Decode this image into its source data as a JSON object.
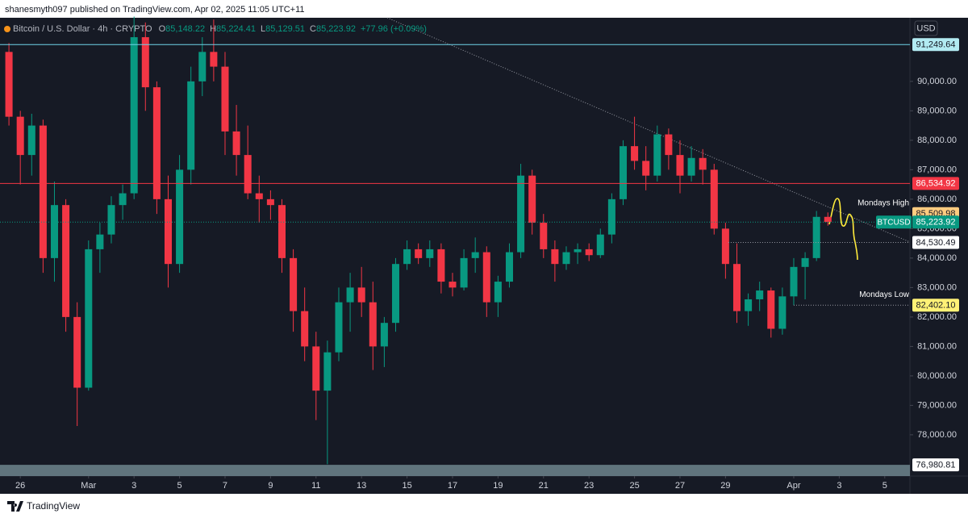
{
  "header": {
    "text": "shanesmyth097 published on TradingView.com, Apr 02, 2025 11:05 UTC+11"
  },
  "footer": {
    "brand": "TradingView"
  },
  "chart_data": {
    "type": "candlestick",
    "title": "Bitcoin / U.S. Dollar · 4h · CRYPTO",
    "legend": [
      {
        "prefix": "O",
        "value": 85148.22,
        "label": "85,148.22"
      },
      {
        "prefix": "H",
        "value": 85224.41,
        "label": "85,224.41"
      },
      {
        "prefix": "L",
        "value": 85129.51,
        "label": "85,129.51"
      },
      {
        "prefix": "C",
        "value": 85223.92,
        "label": "85,223.92"
      }
    ],
    "change": "+77.96 (+0.09%)",
    "currency": "USD",
    "up_color": "#089981",
    "down_color": "#f23645",
    "grid": false,
    "xlim": [
      "2025-02-25T02:34",
      "2025-04-06T02:34"
    ],
    "ylim": [
      76600,
      92160
    ],
    "yticks": [
      {
        "value": 78000,
        "label": "78,000.00"
      },
      {
        "value": 79000,
        "label": "79,000.00"
      },
      {
        "value": 80000,
        "label": "80,000.00"
      },
      {
        "value": 81000,
        "label": "81,000.00"
      },
      {
        "value": 82000,
        "label": "82,000.00"
      },
      {
        "value": 83000,
        "label": "83,000.00"
      },
      {
        "value": 84000,
        "label": "84,000.00"
      },
      {
        "value": 85000,
        "label": "85,000.00"
      },
      {
        "value": 86000,
        "label": "86,000.00"
      },
      {
        "value": 87000,
        "label": "87,000.00"
      },
      {
        "value": 88000,
        "label": "88,000.00"
      },
      {
        "value": 89000,
        "label": "89,000.00"
      },
      {
        "value": 90000,
        "label": "90,000.00"
      }
    ],
    "xticks": [
      {
        "value": "2025-02-26T00:00",
        "label": "26"
      },
      {
        "value": "2025-03-01T00:00",
        "label": "Mar"
      },
      {
        "value": "2025-03-03T00:00",
        "label": "3"
      },
      {
        "value": "2025-03-05T00:00",
        "label": "5"
      },
      {
        "value": "2025-03-07T00:00",
        "label": "7"
      },
      {
        "value": "2025-03-09T00:00",
        "label": "9"
      },
      {
        "value": "2025-03-11T00:00",
        "label": "11"
      },
      {
        "value": "2025-03-13T00:00",
        "label": "13"
      },
      {
        "value": "2025-03-15T00:00",
        "label": "15"
      },
      {
        "value": "2025-03-17T00:00",
        "label": "17"
      },
      {
        "value": "2025-03-19T00:00",
        "label": "19"
      },
      {
        "value": "2025-03-21T00:00",
        "label": "21"
      },
      {
        "value": "2025-03-23T00:00",
        "label": "23"
      },
      {
        "value": "2025-03-25T00:00",
        "label": "25"
      },
      {
        "value": "2025-03-27T00:00",
        "label": "27"
      },
      {
        "value": "2025-03-29T00:00",
        "label": "29"
      },
      {
        "value": "2025-04-01T00:00",
        "label": "Apr"
      },
      {
        "value": "2025-04-03T00:00",
        "label": "3"
      },
      {
        "value": "2025-04-05T00:00",
        "label": "5"
      }
    ],
    "price_lines": [
      {
        "value": 91249.64,
        "label": "91,249.64",
        "color": "#6fd3ea",
        "box": "#b2ebf2",
        "text_color": "#131722",
        "line": "solid"
      },
      {
        "value": 86534.92,
        "label": "86,534.92",
        "color": "#f23645",
        "box": "#f23645",
        "text_color": "#ffffff",
        "line": "solid"
      },
      {
        "value": 85509.98,
        "label": "85,509.98",
        "color": "#ffcc80",
        "box": "#ffcc80",
        "text_color": "#131722",
        "line": "none",
        "note": "Mondays High"
      },
      {
        "value": 85223.92,
        "label": "85,223.92",
        "color": "#089981",
        "box": "#089981",
        "text_color": "#ffffff",
        "line": "dotted",
        "symbol": "BTCUSD"
      },
      {
        "value": 84530.49,
        "label": "84,530.49",
        "color": "#9598a1",
        "box": "#ffffff",
        "text_color": "#131722",
        "line": "dotted",
        "from": "2025-03-29T03:00"
      },
      {
        "value": 82402.1,
        "label": "82,402.10",
        "color": "#9598a1",
        "box": "#fff176",
        "text_color": "#131722",
        "line": "dotted",
        "from": "2025-04-01T00:00",
        "note": "Mondays Low"
      },
      {
        "value": 76980.81,
        "label": "76,980.81",
        "color": "#7a939b",
        "box": "#ffffff",
        "text_color": "#131722",
        "line": "zone"
      }
    ],
    "x": [
      "2025-02-25T12:00",
      "2025-02-26T00:00",
      "2025-02-26T12:00",
      "2025-02-27T00:00",
      "2025-02-27T12:00",
      "2025-02-28T00:00",
      "2025-02-28T12:00",
      "2025-03-01T00:00",
      "2025-03-01T12:00",
      "2025-03-02T00:00",
      "2025-03-02T12:00",
      "2025-03-03T00:00",
      "2025-03-03T12:00",
      "2025-03-04T00:00",
      "2025-03-04T12:00",
      "2025-03-05T00:00",
      "2025-03-05T12:00",
      "2025-03-06T00:00",
      "2025-03-06T12:00",
      "2025-03-07T00:00",
      "2025-03-07T12:00",
      "2025-03-08T00:00",
      "2025-03-08T12:00",
      "2025-03-09T00:00",
      "2025-03-09T12:00",
      "2025-03-10T00:00",
      "2025-03-10T12:00",
      "2025-03-11T00:00",
      "2025-03-11T12:00",
      "2025-03-12T00:00",
      "2025-03-12T12:00",
      "2025-03-13T00:00",
      "2025-03-13T12:00",
      "2025-03-14T00:00",
      "2025-03-14T12:00",
      "2025-03-15T00:00",
      "2025-03-15T12:00",
      "2025-03-16T00:00",
      "2025-03-16T12:00",
      "2025-03-17T00:00",
      "2025-03-17T12:00",
      "2025-03-18T00:00",
      "2025-03-18T12:00",
      "2025-03-19T00:00",
      "2025-03-19T12:00",
      "2025-03-20T00:00",
      "2025-03-20T12:00",
      "2025-03-21T00:00",
      "2025-03-21T12:00",
      "2025-03-22T00:00",
      "2025-03-22T12:00",
      "2025-03-23T00:00",
      "2025-03-23T12:00",
      "2025-03-24T00:00",
      "2025-03-24T12:00",
      "2025-03-25T00:00",
      "2025-03-25T12:00",
      "2025-03-26T00:00",
      "2025-03-26T12:00",
      "2025-03-27T00:00",
      "2025-03-27T12:00",
      "2025-03-28T00:00",
      "2025-03-28T12:00",
      "2025-03-29T00:00",
      "2025-03-29T12:00",
      "2025-03-30T00:00",
      "2025-03-30T12:00",
      "2025-03-31T00:00",
      "2025-03-31T12:00",
      "2025-04-01T00:00",
      "2025-04-01T12:00",
      "2025-04-02T00:00",
      "2025-04-02T12:00"
    ],
    "ohlc": [
      [
        91000,
        91300,
        88500,
        88800
      ],
      [
        88800,
        89000,
        86500,
        87500
      ],
      [
        87500,
        88900,
        86800,
        88500
      ],
      [
        88500,
        88700,
        83500,
        84000
      ],
      [
        84000,
        86600,
        83200,
        85800
      ],
      [
        85800,
        86000,
        81500,
        82000
      ],
      [
        82000,
        82500,
        78300,
        79600
      ],
      [
        79600,
        84600,
        79500,
        84300
      ],
      [
        84300,
        85200,
        83500,
        84800
      ],
      [
        84800,
        86100,
        84500,
        85800
      ],
      [
        85800,
        86500,
        85300,
        86200
      ],
      [
        86200,
        92200,
        86000,
        91500
      ],
      [
        91500,
        92000,
        89000,
        89800
      ],
      [
        89800,
        90000,
        85500,
        86000
      ],
      [
        86000,
        86800,
        83000,
        83800
      ],
      [
        83800,
        87500,
        83500,
        87000
      ],
      [
        87000,
        90500,
        86500,
        90000
      ],
      [
        90000,
        91500,
        89500,
        91000
      ],
      [
        91000,
        92100,
        90000,
        90500
      ],
      [
        90500,
        91000,
        87500,
        88300
      ],
      [
        88300,
        89200,
        86800,
        87500
      ],
      [
        87500,
        88500,
        86000,
        86200
      ],
      [
        86200,
        86800,
        85200,
        86000
      ],
      [
        86000,
        86300,
        85300,
        85800
      ],
      [
        85800,
        86000,
        83500,
        84000
      ],
      [
        84000,
        84300,
        81500,
        82200
      ],
      [
        82200,
        83000,
        80500,
        81000
      ],
      [
        81000,
        81500,
        78500,
        79500
      ],
      [
        79500,
        81200,
        77000,
        80800
      ],
      [
        80800,
        83000,
        80500,
        82500
      ],
      [
        82500,
        83500,
        81500,
        83000
      ],
      [
        83000,
        83700,
        82000,
        82500
      ],
      [
        82500,
        83200,
        80200,
        81000
      ],
      [
        81000,
        82000,
        80300,
        81800
      ],
      [
        81800,
        84000,
        81500,
        83800
      ],
      [
        83800,
        84600,
        83600,
        84300
      ],
      [
        84300,
        84500,
        83800,
        84000
      ],
      [
        84000,
        84600,
        83700,
        84300
      ],
      [
        84300,
        84500,
        82800,
        83200
      ],
      [
        83200,
        83500,
        82700,
        83000
      ],
      [
        83000,
        84300,
        82900,
        84000
      ],
      [
        84000,
        84700,
        83500,
        84200
      ],
      [
        84200,
        84400,
        82000,
        82500
      ],
      [
        82500,
        83400,
        82000,
        83200
      ],
      [
        83200,
        84500,
        83000,
        84200
      ],
      [
        84200,
        87200,
        84000,
        86800
      ],
      [
        86800,
        87000,
        84800,
        85200
      ],
      [
        85200,
        85500,
        84000,
        84300
      ],
      [
        84300,
        84600,
        83200,
        83800
      ],
      [
        83800,
        84400,
        83600,
        84200
      ],
      [
        84200,
        84500,
        83800,
        84300
      ],
      [
        84300,
        84500,
        83900,
        84100
      ],
      [
        84100,
        85000,
        84000,
        84800
      ],
      [
        84800,
        86200,
        84500,
        86000
      ],
      [
        86000,
        88000,
        85800,
        87800
      ],
      [
        87800,
        88800,
        87000,
        87300
      ],
      [
        87300,
        87800,
        86300,
        86800
      ],
      [
        86800,
        88500,
        86600,
        88200
      ],
      [
        88200,
        88400,
        87000,
        87500
      ],
      [
        87500,
        88000,
        86200,
        86800
      ],
      [
        86800,
        87800,
        86600,
        87400
      ],
      [
        87400,
        87700,
        86500,
        87000
      ],
      [
        87000,
        87200,
        84800,
        85000
      ],
      [
        85000,
        85200,
        83300,
        83800
      ],
      [
        83800,
        84500,
        81800,
        82200
      ],
      [
        82200,
        82800,
        81700,
        82600
      ],
      [
        82600,
        83200,
        82200,
        82900
      ],
      [
        82900,
        83000,
        81300,
        81600
      ],
      [
        81600,
        83000,
        81400,
        82700
      ],
      [
        82700,
        84000,
        82400,
        83700
      ],
      [
        83700,
        84200,
        82600,
        84000
      ],
      [
        84000,
        85600,
        83900,
        85400
      ],
      [
        85400,
        85550,
        85100,
        85223.92
      ]
    ]
  }
}
